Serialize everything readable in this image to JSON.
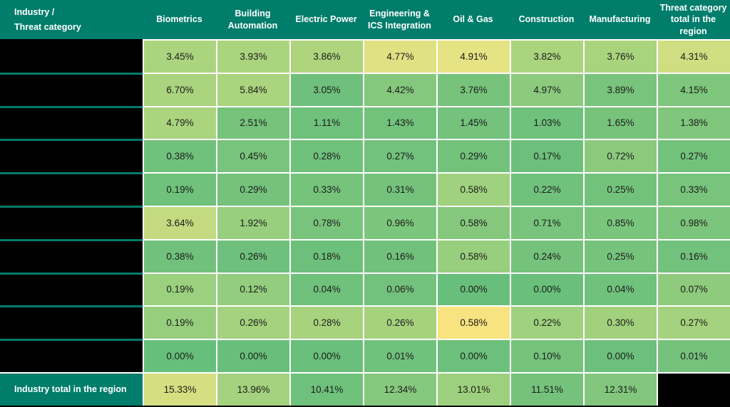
{
  "header": {
    "corner_line1": "Industry /",
    "corner_line2": "Threat category",
    "columns": [
      "Biometrics",
      "Building Automation",
      "Electric Power",
      "Engineering & ICS Integration",
      "Oil & Gas",
      "Construction",
      "Manufacturing",
      "Threat category total in the region"
    ]
  },
  "total_label": "Industry total in the region",
  "palette": {
    "header_bg": "#007d6b",
    "header_text": "#ffffff",
    "cell_text": "#1b1b1b",
    "grid_line": "#ffffff",
    "redacted_black": "#000000"
  },
  "chart_data": {
    "type": "heatmap",
    "unit": "%",
    "title": "",
    "columns": [
      "Biometrics",
      "Building Automation",
      "Electric Power",
      "Engineering & ICS Integration",
      "Oil & Gas",
      "Construction",
      "Manufacturing",
      "Threat category total in the region"
    ],
    "rows": [
      {
        "label": "",
        "label_redacted": true,
        "values": [
          3.45,
          3.93,
          3.86,
          4.77,
          4.91,
          3.82,
          3.76,
          4.31
        ],
        "colors": [
          "#abd47e",
          "#abd47e",
          "#aed57e",
          "#e0e183",
          "#e6e384",
          "#aad47e",
          "#a9d47e",
          "#cede81"
        ]
      },
      {
        "label": "",
        "label_redacted": true,
        "values": [
          6.7,
          5.84,
          3.05,
          4.42,
          3.76,
          4.97,
          3.89,
          4.15
        ],
        "colors": [
          "#aad47e",
          "#abd47e",
          "#6ec07c",
          "#85c87d",
          "#77c37c",
          "#8cca7d",
          "#79c47c",
          "#7ec67c"
        ]
      },
      {
        "label": "",
        "label_redacted": true,
        "values": [
          4.79,
          2.51,
          1.11,
          1.43,
          1.45,
          1.03,
          1.65,
          1.38
        ],
        "colors": [
          "#abd47e",
          "#76c37c",
          "#6fc17c",
          "#73c27c",
          "#74c27c",
          "#70c17c",
          "#77c37c",
          "#80c67c"
        ]
      },
      {
        "label": "",
        "label_redacted": true,
        "values": [
          0.38,
          0.45,
          0.28,
          0.27,
          0.29,
          0.17,
          0.72,
          0.27
        ],
        "colors": [
          "#70c17c",
          "#78c47c",
          "#6fc17c",
          "#72c17c",
          "#72c27c",
          "#6dc07b",
          "#8bca7d",
          "#73c27c"
        ]
      },
      {
        "label": "",
        "label_redacted": true,
        "values": [
          0.19,
          0.29,
          0.33,
          0.31,
          0.58,
          0.22,
          0.25,
          0.33
        ],
        "colors": [
          "#6fc17c",
          "#74c27c",
          "#76c37c",
          "#75c27c",
          "#a0d17e",
          "#70c17c",
          "#73c27c",
          "#79c47c"
        ]
      },
      {
        "label": "",
        "label_redacted": true,
        "values": [
          3.64,
          1.92,
          0.78,
          0.96,
          0.58,
          0.71,
          0.85,
          0.98
        ],
        "colors": [
          "#c3da80",
          "#98cf7e",
          "#79c47c",
          "#7cc57c",
          "#85c87d",
          "#78c47c",
          "#7ac57c",
          "#7cc57c"
        ]
      },
      {
        "label": "",
        "label_redacted": true,
        "values": [
          0.38,
          0.26,
          0.18,
          0.16,
          0.58,
          0.24,
          0.25,
          0.16
        ],
        "colors": [
          "#71c17c",
          "#6ec07c",
          "#6cc07b",
          "#71c17c",
          "#98cf7e",
          "#74c27c",
          "#76c37c",
          "#72c17c"
        ]
      },
      {
        "label": "",
        "label_redacted": true,
        "values": [
          0.19,
          0.12,
          0.04,
          0.06,
          0.0,
          0.0,
          0.04,
          0.07
        ],
        "colors": [
          "#9ad07e",
          "#93cd7d",
          "#70c17c",
          "#72c17c",
          "#68bf7b",
          "#6abf7b",
          "#70c17c",
          "#8fcb7d"
        ]
      },
      {
        "label": "",
        "label_redacted": true,
        "values": [
          0.19,
          0.26,
          0.28,
          0.26,
          0.58,
          0.22,
          0.3,
          0.27
        ],
        "colors": [
          "#97ce7d",
          "#a4d27e",
          "#a8d37e",
          "#a6d27e",
          "#f7e37f",
          "#a0d17e",
          "#a2d17e",
          "#a5d27e"
        ]
      },
      {
        "label": "",
        "label_redacted": true,
        "values": [
          0.0,
          0.0,
          0.0,
          0.01,
          0.0,
          0.1,
          0.0,
          0.01
        ],
        "colors": [
          "#66bf7b",
          "#68bf7b",
          "#69bf7b",
          "#70c17c",
          "#6dc07b",
          "#76c37c",
          "#6cc07b",
          "#75c27c"
        ]
      }
    ],
    "total_row": {
      "label": "Industry total in the region",
      "values": [
        15.33,
        13.96,
        10.41,
        12.34,
        13.01,
        11.51,
        12.31
      ],
      "colors": [
        "#d6de82",
        "#a5d27e",
        "#6fc17c",
        "#86c87d",
        "#9dd07e",
        "#74c27c",
        "#82c77d"
      ],
      "last_cell_redacted": true
    }
  }
}
